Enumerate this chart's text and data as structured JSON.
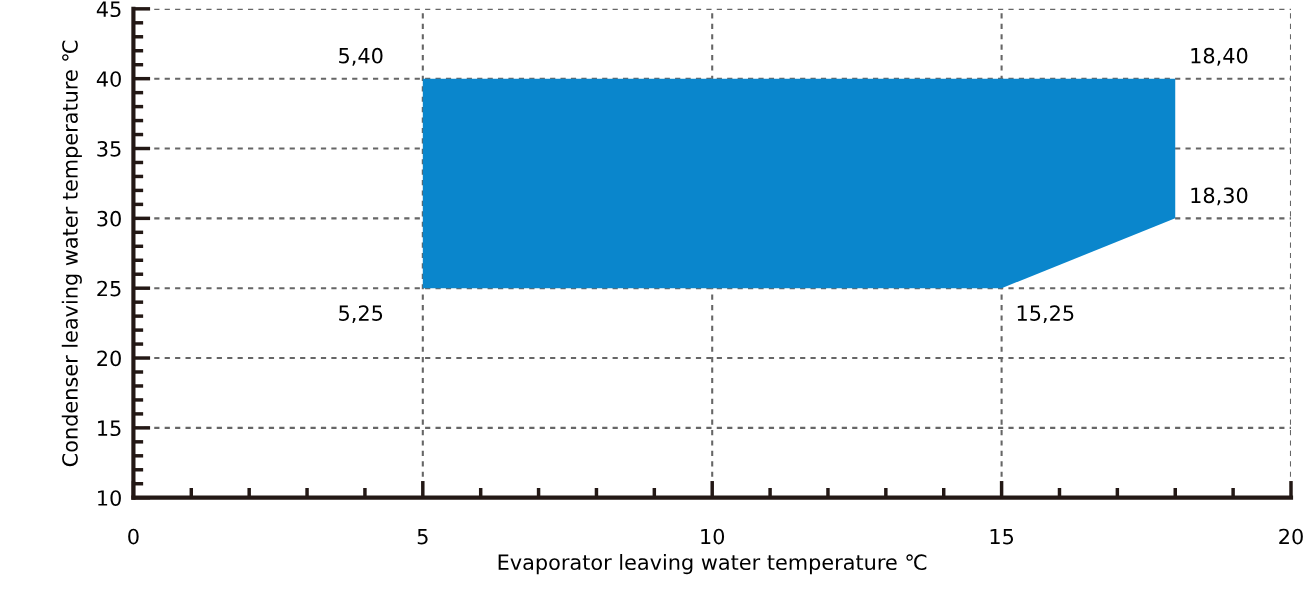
{
  "chart_data": {
    "type": "area",
    "xlabel": "Evaporator leaving water temperature ℃",
    "ylabel": "Condenser leaving water temperature ℃",
    "series": [
      {
        "color": "#0a86cc",
        "x": [
          5,
          5,
          18,
          18,
          15
        ],
        "values": [
          25,
          40,
          40,
          30,
          25
        ]
      }
    ],
    "xlim": [
      0,
      20
    ],
    "xticks": [
      0,
      5,
      10,
      15,
      20
    ],
    "ylim": [
      10,
      45
    ],
    "yticks": [
      10,
      15,
      20,
      25,
      30,
      35,
      40,
      45
    ],
    "grid": true,
    "annotations": [
      {
        "text": "5,40",
        "x": 5,
        "y": 40
      },
      {
        "text": "18,40",
        "x": 18,
        "y": 40
      },
      {
        "text": "18,30",
        "x": 18,
        "y": 30
      },
      {
        "text": "5,25",
        "x": 5,
        "y": 25
      },
      {
        "text": "15,25",
        "x": 15,
        "y": 25
      }
    ]
  }
}
